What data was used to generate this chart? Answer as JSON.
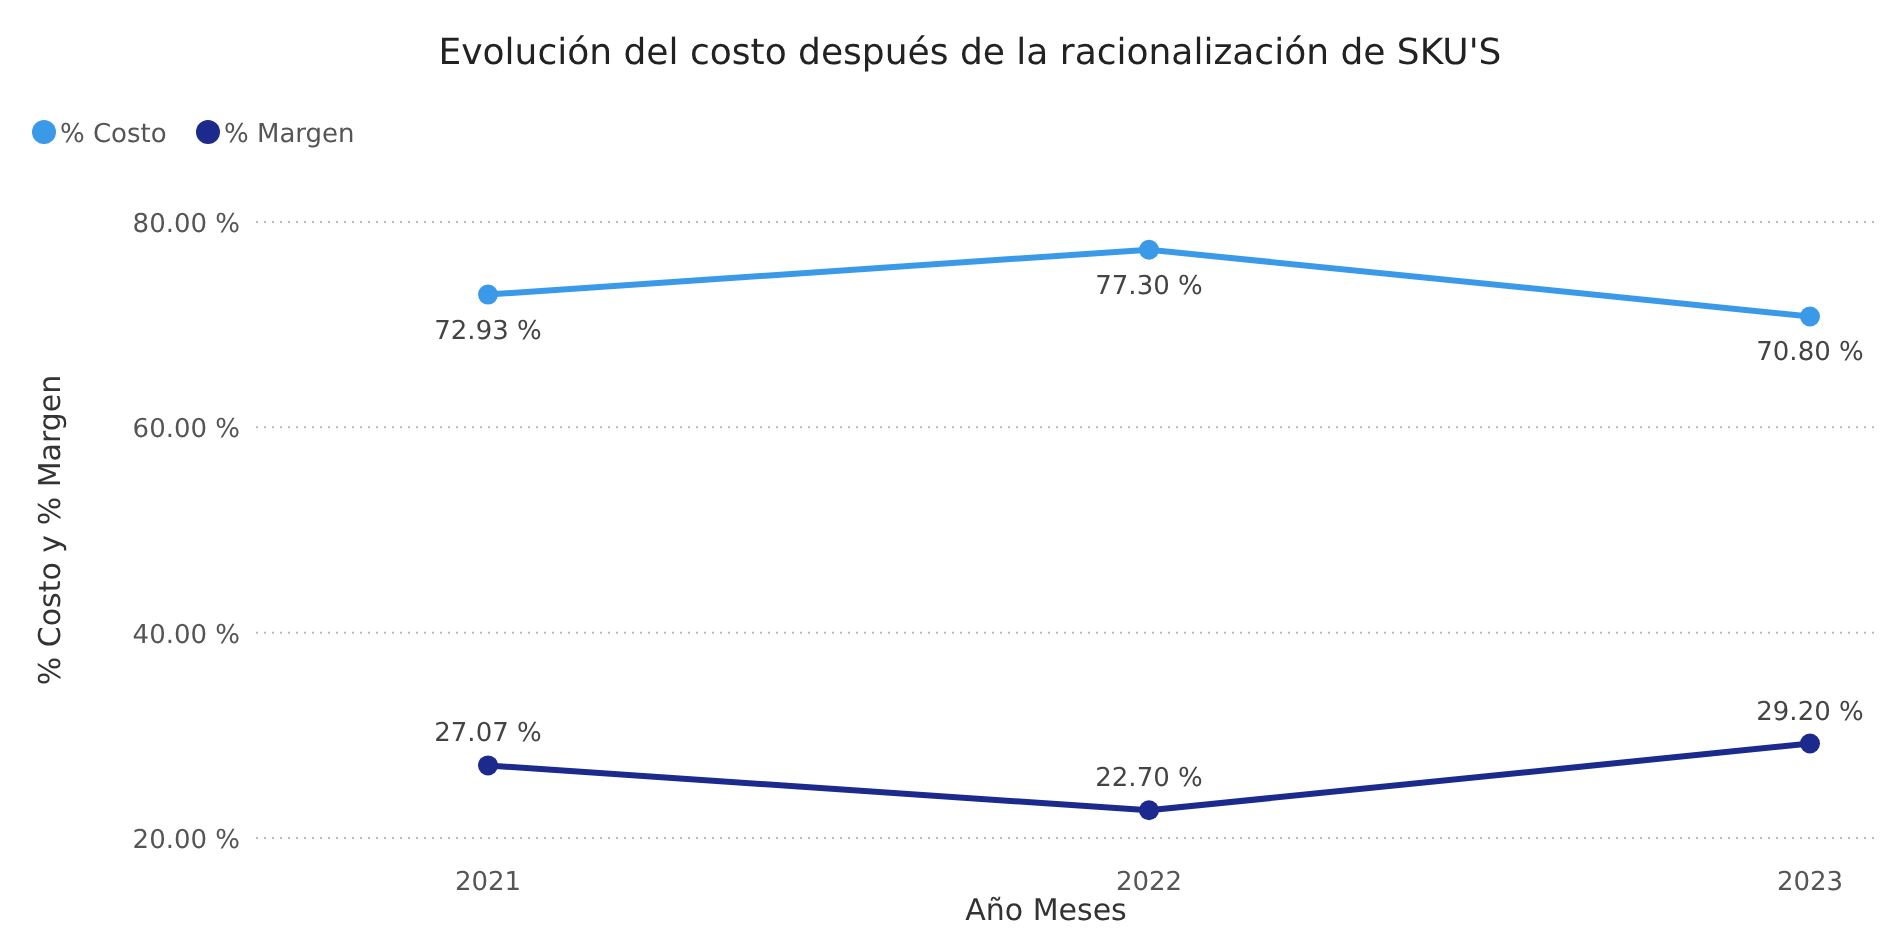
{
  "chart_data": {
    "type": "line",
    "title": "Evolución del costo después de la racionalización de SKU'S",
    "xlabel": "Año Meses",
    "ylabel": "% Costo y % Margen",
    "categories": [
      "2021",
      "2022",
      "2023"
    ],
    "series": [
      {
        "name": "% Costo",
        "color": "#3a9ae8",
        "values": [
          72.93,
          77.3,
          70.8
        ],
        "value_labels": [
          "72.93 %",
          "77.30 %",
          "70.80 %"
        ]
      },
      {
        "name": "% Margen",
        "color": "#1b2a8c",
        "values": [
          27.07,
          22.7,
          29.2
        ],
        "value_labels": [
          "27.07 %",
          "22.70 %",
          "29.20 %"
        ]
      }
    ],
    "ylim": [
      20,
      80
    ],
    "yticks": [
      {
        "value": 20,
        "label": "20.00 %"
      },
      {
        "value": 40,
        "label": "40.00 %"
      },
      {
        "value": 60,
        "label": "60.00 %"
      },
      {
        "value": 80,
        "label": "80.00 %"
      }
    ],
    "grid": "y",
    "legend": "top left",
    "marker": "circle",
    "line_style": "solid"
  }
}
